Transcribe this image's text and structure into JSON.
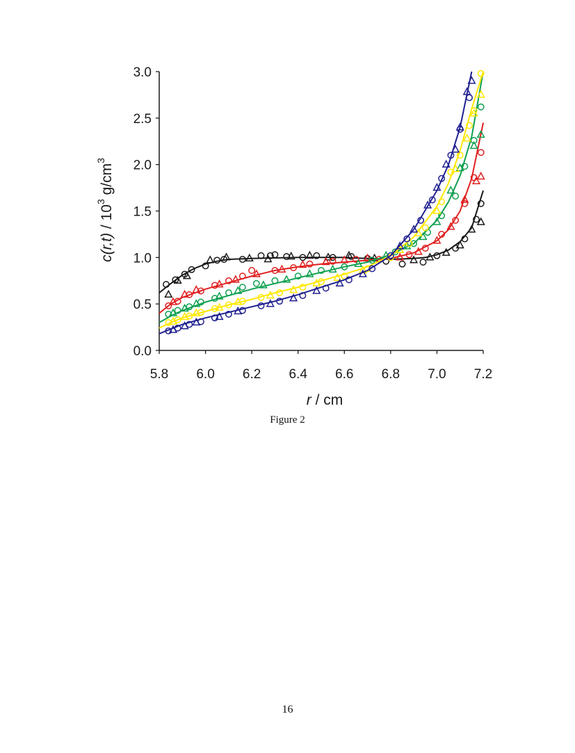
{
  "caption": "Figure 2",
  "page_number": "16",
  "chart_data": {
    "type": "scatter",
    "xlabel_italic": "r",
    "xlabel_rest": " / cm",
    "ylabel_italic": "c(r,t)",
    "ylabel_rest": "  / 10",
    "ylabel_sup1": "3",
    "ylabel_mid": " g/cm",
    "ylabel_sup2": "3",
    "xlim": [
      5.8,
      7.2
    ],
    "ylim": [
      0.0,
      3.0
    ],
    "xticks": [
      "5.8",
      "6.0",
      "6.2",
      "6.4",
      "6.6",
      "6.8",
      "7.0",
      "7.2"
    ],
    "yticks": [
      "0.0",
      "0.5",
      "1.0",
      "1.5",
      "2.0",
      "2.5",
      "3.0"
    ],
    "grid": false,
    "legend": "none",
    "series": [
      {
        "color": "#1a1a1a",
        "line": [
          [
            5.8,
            0.62
          ],
          [
            5.85,
            0.72
          ],
          [
            5.9,
            0.81
          ],
          [
            5.95,
            0.88
          ],
          [
            6.0,
            0.93
          ],
          [
            6.05,
            0.96
          ],
          [
            6.1,
            0.98
          ],
          [
            6.2,
            0.99
          ],
          [
            6.4,
            1.0
          ],
          [
            6.6,
            1.0
          ],
          [
            6.7,
            0.99
          ],
          [
            6.8,
            0.98
          ],
          [
            6.9,
            0.99
          ],
          [
            6.95,
            1.0
          ],
          [
            7.0,
            1.03
          ],
          [
            7.05,
            1.08
          ],
          [
            7.1,
            1.17
          ],
          [
            7.15,
            1.32
          ],
          [
            7.2,
            1.72
          ]
        ],
        "circles": [
          [
            5.83,
            0.71
          ],
          [
            5.87,
            0.76
          ],
          [
            5.91,
            0.82
          ],
          [
            5.94,
            0.87
          ],
          [
            6.0,
            0.91
          ],
          [
            6.05,
            0.97
          ],
          [
            6.08,
            0.98
          ],
          [
            6.16,
            0.98
          ],
          [
            6.24,
            1.02
          ],
          [
            6.28,
            1.02
          ],
          [
            6.3,
            1.03
          ],
          [
            6.35,
            1.01
          ],
          [
            6.42,
            1.0
          ],
          [
            6.48,
            1.02
          ],
          [
            6.55,
            1.0
          ],
          [
            6.63,
            1.01
          ],
          [
            6.7,
            0.99
          ],
          [
            6.78,
            0.96
          ],
          [
            6.85,
            0.93
          ],
          [
            6.94,
            0.95
          ],
          [
            7.0,
            1.02
          ],
          [
            7.08,
            1.1
          ],
          [
            7.12,
            1.2
          ],
          [
            7.17,
            1.41
          ],
          [
            7.19,
            1.58
          ]
        ],
        "triangles": [
          [
            5.84,
            0.6
          ],
          [
            5.88,
            0.75
          ],
          [
            5.92,
            0.8
          ],
          [
            6.02,
            0.97
          ],
          [
            6.09,
            1.0
          ],
          [
            6.19,
            0.99
          ],
          [
            6.27,
            0.98
          ],
          [
            6.37,
            1.01
          ],
          [
            6.45,
            1.02
          ],
          [
            6.53,
            1.0
          ],
          [
            6.62,
            1.02
          ],
          [
            6.73,
            0.99
          ],
          [
            6.9,
            0.97
          ],
          [
            6.97,
            1.0
          ],
          [
            7.04,
            1.05
          ],
          [
            7.1,
            1.13
          ],
          [
            7.15,
            1.3
          ],
          [
            7.19,
            1.38
          ]
        ]
      },
      {
        "color": "#e02020",
        "line": [
          [
            5.8,
            0.4
          ],
          [
            5.85,
            0.5
          ],
          [
            5.9,
            0.57
          ],
          [
            6.0,
            0.66
          ],
          [
            6.1,
            0.73
          ],
          [
            6.2,
            0.8
          ],
          [
            6.3,
            0.86
          ],
          [
            6.4,
            0.9
          ],
          [
            6.5,
            0.93
          ],
          [
            6.6,
            0.95
          ],
          [
            6.7,
            0.97
          ],
          [
            6.8,
            0.99
          ],
          [
            6.9,
            1.05
          ],
          [
            7.0,
            1.18
          ],
          [
            7.05,
            1.3
          ],
          [
            7.1,
            1.5
          ],
          [
            7.15,
            1.85
          ],
          [
            7.2,
            2.45
          ]
        ],
        "circles": [
          [
            5.84,
            0.48
          ],
          [
            5.88,
            0.53
          ],
          [
            5.93,
            0.6
          ],
          [
            5.98,
            0.64
          ],
          [
            6.04,
            0.7
          ],
          [
            6.1,
            0.75
          ],
          [
            6.16,
            0.8
          ],
          [
            6.2,
            0.86
          ],
          [
            6.3,
            0.86
          ],
          [
            6.38,
            0.89
          ],
          [
            6.45,
            0.93
          ],
          [
            6.55,
            0.96
          ],
          [
            6.65,
            0.98
          ],
          [
            6.75,
            0.98
          ],
          [
            6.88,
            1.03
          ],
          [
            6.95,
            1.1
          ],
          [
            7.02,
            1.25
          ],
          [
            7.08,
            1.4
          ],
          [
            7.12,
            1.58
          ],
          [
            7.16,
            1.86
          ],
          [
            7.19,
            2.13
          ]
        ],
        "triangles": [
          [
            5.86,
            0.52
          ],
          [
            5.91,
            0.6
          ],
          [
            5.96,
            0.65
          ],
          [
            6.06,
            0.71
          ],
          [
            6.13,
            0.76
          ],
          [
            6.22,
            0.82
          ],
          [
            6.33,
            0.87
          ],
          [
            6.42,
            0.92
          ],
          [
            6.52,
            0.95
          ],
          [
            6.6,
            0.97
          ],
          [
            6.7,
            0.99
          ],
          [
            6.84,
            1.0
          ],
          [
            6.92,
            1.06
          ],
          [
            7.0,
            1.18
          ],
          [
            7.06,
            1.33
          ],
          [
            7.12,
            1.62
          ],
          [
            7.17,
            1.82
          ],
          [
            7.19,
            1.87
          ]
        ]
      },
      {
        "color": "#10a050",
        "line": [
          [
            5.8,
            0.3
          ],
          [
            5.85,
            0.37
          ],
          [
            5.9,
            0.43
          ],
          [
            6.0,
            0.52
          ],
          [
            6.1,
            0.59
          ],
          [
            6.2,
            0.66
          ],
          [
            6.3,
            0.72
          ],
          [
            6.4,
            0.78
          ],
          [
            6.5,
            0.84
          ],
          [
            6.6,
            0.9
          ],
          [
            6.7,
            0.95
          ],
          [
            6.8,
            1.03
          ],
          [
            6.9,
            1.15
          ],
          [
            7.0,
            1.4
          ],
          [
            7.05,
            1.6
          ],
          [
            7.1,
            1.88
          ],
          [
            7.15,
            2.3
          ],
          [
            7.2,
            3.0
          ]
        ],
        "circles": [
          [
            5.84,
            0.39
          ],
          [
            5.88,
            0.43
          ],
          [
            5.93,
            0.47
          ],
          [
            5.98,
            0.52
          ],
          [
            6.04,
            0.56
          ],
          [
            6.1,
            0.62
          ],
          [
            6.16,
            0.68
          ],
          [
            6.22,
            0.72
          ],
          [
            6.3,
            0.75
          ],
          [
            6.4,
            0.8
          ],
          [
            6.5,
            0.86
          ],
          [
            6.6,
            0.9
          ],
          [
            6.72,
            0.97
          ],
          [
            6.82,
            1.06
          ],
          [
            6.9,
            1.15
          ],
          [
            6.96,
            1.27
          ],
          [
            7.02,
            1.45
          ],
          [
            7.08,
            1.66
          ],
          [
            7.12,
            1.98
          ],
          [
            7.16,
            2.26
          ],
          [
            7.19,
            2.62
          ]
        ],
        "triangles": [
          [
            5.86,
            0.4
          ],
          [
            5.91,
            0.45
          ],
          [
            5.96,
            0.5
          ],
          [
            6.06,
            0.58
          ],
          [
            6.14,
            0.64
          ],
          [
            6.25,
            0.7
          ],
          [
            6.35,
            0.76
          ],
          [
            6.45,
            0.82
          ],
          [
            6.55,
            0.87
          ],
          [
            6.66,
            0.93
          ],
          [
            6.78,
            1.02
          ],
          [
            6.87,
            1.12
          ],
          [
            6.94,
            1.22
          ],
          [
            7.0,
            1.38
          ],
          [
            7.06,
            1.72
          ],
          [
            7.1,
            1.96
          ],
          [
            7.16,
            2.2
          ],
          [
            7.19,
            2.32
          ]
        ]
      },
      {
        "color": "#ffe800",
        "line": [
          [
            5.8,
            0.24
          ],
          [
            5.85,
            0.3
          ],
          [
            5.9,
            0.35
          ],
          [
            6.0,
            0.42
          ],
          [
            6.1,
            0.49
          ],
          [
            6.2,
            0.55
          ],
          [
            6.3,
            0.62
          ],
          [
            6.4,
            0.68
          ],
          [
            6.5,
            0.75
          ],
          [
            6.6,
            0.82
          ],
          [
            6.7,
            0.9
          ],
          [
            6.8,
            1.02
          ],
          [
            6.9,
            1.22
          ],
          [
            7.0,
            1.55
          ],
          [
            7.05,
            1.8
          ],
          [
            7.1,
            2.15
          ],
          [
            7.15,
            2.6
          ],
          [
            7.2,
            3.0
          ]
        ],
        "circles": [
          [
            5.84,
            0.3
          ],
          [
            5.88,
            0.33
          ],
          [
            5.93,
            0.37
          ],
          [
            5.98,
            0.41
          ],
          [
            6.04,
            0.45
          ],
          [
            6.1,
            0.49
          ],
          [
            6.16,
            0.53
          ],
          [
            6.24,
            0.57
          ],
          [
            6.32,
            0.62
          ],
          [
            6.42,
            0.68
          ],
          [
            6.5,
            0.74
          ],
          [
            6.6,
            0.8
          ],
          [
            6.7,
            0.88
          ],
          [
            6.8,
            1.0
          ],
          [
            6.88,
            1.15
          ],
          [
            6.95,
            1.32
          ],
          [
            7.02,
            1.6
          ],
          [
            7.06,
            1.92
          ],
          [
            7.1,
            2.1
          ],
          [
            7.14,
            2.42
          ],
          [
            7.16,
            2.58
          ],
          [
            7.19,
            2.98
          ]
        ],
        "triangles": [
          [
            5.86,
            0.31
          ],
          [
            5.91,
            0.36
          ],
          [
            5.96,
            0.4
          ],
          [
            6.06,
            0.46
          ],
          [
            6.14,
            0.52
          ],
          [
            6.28,
            0.59
          ],
          [
            6.38,
            0.65
          ],
          [
            6.48,
            0.72
          ],
          [
            6.57,
            0.78
          ],
          [
            6.68,
            0.86
          ],
          [
            6.84,
            1.08
          ],
          [
            6.92,
            1.26
          ],
          [
            7.0,
            1.5
          ],
          [
            7.08,
            1.95
          ],
          [
            7.13,
            2.28
          ],
          [
            7.16,
            2.55
          ],
          [
            7.19,
            2.75
          ]
        ]
      },
      {
        "color": "#202090",
        "line": [
          [
            5.8,
            0.18
          ],
          [
            5.85,
            0.23
          ],
          [
            5.9,
            0.28
          ],
          [
            6.0,
            0.35
          ],
          [
            6.1,
            0.41
          ],
          [
            6.2,
            0.47
          ],
          [
            6.3,
            0.53
          ],
          [
            6.4,
            0.6
          ],
          [
            6.5,
            0.68
          ],
          [
            6.6,
            0.76
          ],
          [
            6.7,
            0.86
          ],
          [
            6.8,
            1.02
          ],
          [
            6.9,
            1.3
          ],
          [
            7.0,
            1.72
          ],
          [
            7.05,
            2.0
          ],
          [
            7.1,
            2.4
          ],
          [
            7.15,
            3.0
          ]
        ],
        "circles": [
          [
            5.84,
            0.21
          ],
          [
            5.88,
            0.24
          ],
          [
            5.93,
            0.28
          ],
          [
            5.98,
            0.31
          ],
          [
            6.04,
            0.35
          ],
          [
            6.1,
            0.39
          ],
          [
            6.16,
            0.43
          ],
          [
            6.24,
            0.48
          ],
          [
            6.32,
            0.53
          ],
          [
            6.42,
            0.59
          ],
          [
            6.52,
            0.67
          ],
          [
            6.62,
            0.76
          ],
          [
            6.72,
            0.88
          ],
          [
            6.8,
            1.02
          ],
          [
            6.87,
            1.2
          ],
          [
            6.93,
            1.4
          ],
          [
            6.98,
            1.62
          ],
          [
            7.02,
            1.85
          ],
          [
            7.06,
            2.1
          ],
          [
            7.1,
            2.38
          ],
          [
            7.14,
            2.72
          ]
        ],
        "triangles": [
          [
            5.86,
            0.22
          ],
          [
            5.91,
            0.26
          ],
          [
            5.96,
            0.3
          ],
          [
            6.06,
            0.36
          ],
          [
            6.14,
            0.42
          ],
          [
            6.28,
            0.5
          ],
          [
            6.38,
            0.56
          ],
          [
            6.48,
            0.64
          ],
          [
            6.58,
            0.72
          ],
          [
            6.68,
            0.82
          ],
          [
            6.84,
            1.12
          ],
          [
            6.9,
            1.3
          ],
          [
            6.96,
            1.56
          ],
          [
            7.0,
            1.75
          ],
          [
            7.04,
            2.0
          ],
          [
            7.08,
            2.16
          ],
          [
            7.1,
            2.4
          ],
          [
            7.13,
            2.78
          ],
          [
            7.15,
            2.9
          ]
        ]
      }
    ]
  }
}
